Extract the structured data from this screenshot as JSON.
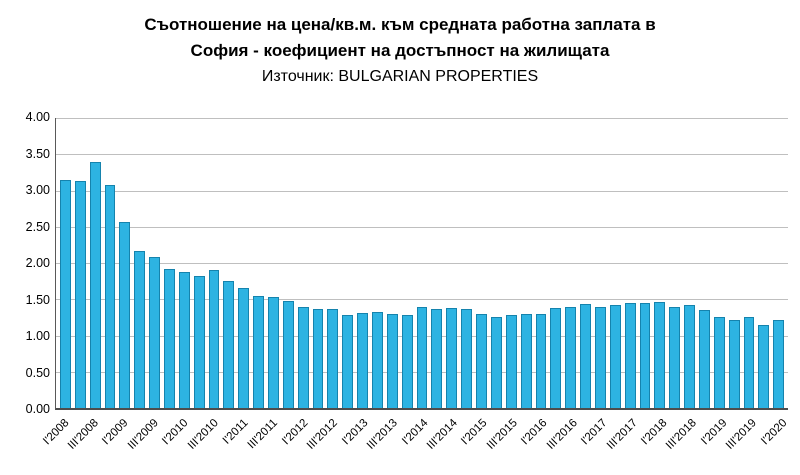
{
  "header": {
    "line1": "Съотношение на цена/кв.м. към средната работна заплата в",
    "line2": "София - коефициент на достъпност на жилищата",
    "source": "Източник: BULGARIAN PROPERTIES"
  },
  "chart_data": {
    "type": "bar",
    "title": "Съотношение на цена/кв.м. към средната работна заплата в София - коефициент на достъпност на жилищата",
    "subtitle": "Източник: BULGARIAN PROPERTIES",
    "ylabel": "",
    "xlabel": "",
    "ylim": [
      0,
      4
    ],
    "ytick_step": 0.5,
    "y_ticks": [
      "4.00",
      "3.50",
      "3.00",
      "2.50",
      "2.00",
      "1.50",
      "1.00",
      "0.50",
      "0.00"
    ],
    "grid": true,
    "legend_position": "none",
    "bar_color": "#2DB3E2",
    "bar_border_color": "#1583AD",
    "tick_every": 2,
    "tick_labels": [
      "I'2008",
      "III'2008",
      "I'2009",
      "III'2009",
      "I'2010",
      "III'2010",
      "I'2011",
      "III'2011",
      "I'2012",
      "III'2012",
      "I'2013",
      "III'2013",
      "I'2014",
      "III'2014",
      "I'2015",
      "III'2015",
      "I'2016",
      "III'2016",
      "I'2017",
      "III'2017",
      "I'2018",
      "III'2018",
      "I'2019",
      "III'2019",
      "I'2020"
    ],
    "values": [
      3.15,
      3.13,
      3.4,
      3.07,
      2.57,
      2.17,
      2.08,
      1.92,
      1.88,
      1.82,
      1.9,
      1.75,
      1.65,
      1.55,
      1.53,
      1.47,
      1.4,
      1.37,
      1.36,
      1.28,
      1.31,
      1.32,
      1.3,
      1.28,
      1.4,
      1.37,
      1.38,
      1.37,
      1.3,
      1.26,
      1.28,
      1.3,
      1.3,
      1.38,
      1.4,
      1.43,
      1.4,
      1.42,
      1.45,
      1.45,
      1.46,
      1.4,
      1.42,
      1.35,
      1.25,
      1.22,
      1.25,
      1.15,
      1.22
    ]
  }
}
